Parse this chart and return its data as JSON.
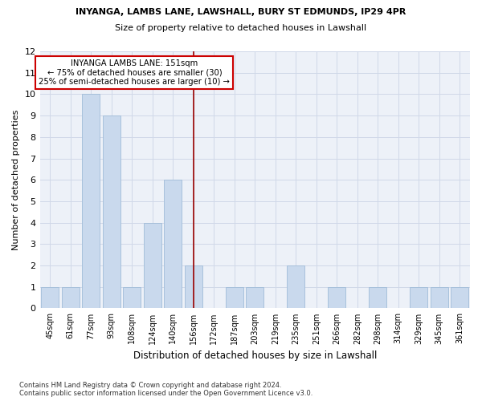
{
  "title1": "INYANGA, LAMBS LANE, LAWSHALL, BURY ST EDMUNDS, IP29 4PR",
  "title2": "Size of property relative to detached houses in Lawshall",
  "xlabel": "Distribution of detached houses by size in Lawshall",
  "ylabel": "Number of detached properties",
  "categories": [
    "45sqm",
    "61sqm",
    "77sqm",
    "93sqm",
    "108sqm",
    "124sqm",
    "140sqm",
    "156sqm",
    "172sqm",
    "187sqm",
    "203sqm",
    "219sqm",
    "235sqm",
    "251sqm",
    "266sqm",
    "282sqm",
    "298sqm",
    "314sqm",
    "329sqm",
    "345sqm",
    "361sqm"
  ],
  "values": [
    1,
    1,
    10,
    9,
    1,
    4,
    6,
    2,
    0,
    1,
    1,
    0,
    2,
    0,
    1,
    0,
    1,
    0,
    1,
    1,
    1
  ],
  "bar_color": "#c9d9ed",
  "bar_edgecolor": "#a0bcd8",
  "vline_x": 7,
  "vline_color": "#990000",
  "ylim": [
    0,
    12
  ],
  "yticks": [
    0,
    1,
    2,
    3,
    4,
    5,
    6,
    7,
    8,
    9,
    10,
    11,
    12
  ],
  "annotation_text": "INYANGA LAMBS LANE: 151sqm\n← 75% of detached houses are smaller (30)\n25% of semi-detached houses are larger (10) →",
  "annotation_box_color": "#ffffff",
  "annotation_box_edgecolor": "#cc0000",
  "footer": "Contains HM Land Registry data © Crown copyright and database right 2024.\nContains public sector information licensed under the Open Government Licence v3.0.",
  "grid_color": "#d0d8e8",
  "background_color": "#edf1f8"
}
